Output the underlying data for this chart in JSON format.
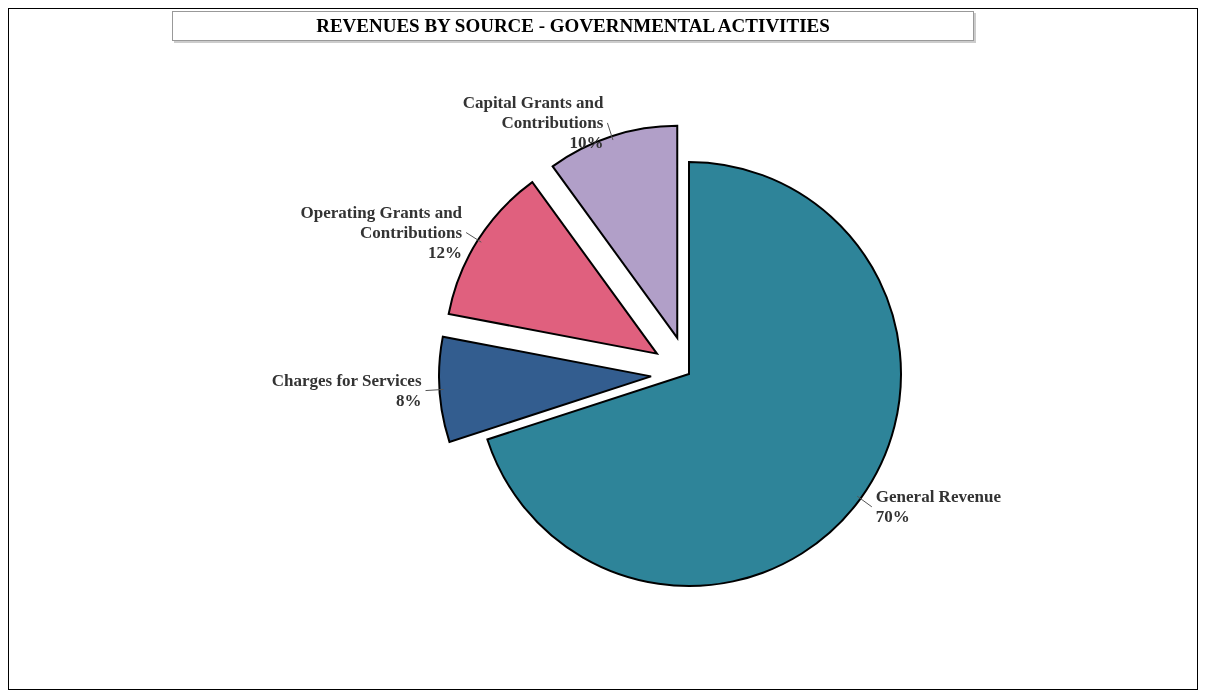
{
  "chart_data": {
    "type": "pie",
    "title": "REVENUES  BY SOURCE - GOVERNMENTAL ACTIVITIES",
    "categories": [
      "General Revenue",
      "Charges for Services",
      "Operating Grants and Contributions",
      "Capital Grants and Contributions"
    ],
    "values": [
      70,
      8,
      12,
      10
    ],
    "colors": [
      "#2e8499",
      "#335d8f",
      "#e0607e",
      "#b19fc8"
    ],
    "value_labels": [
      "70%",
      "8%",
      "12%",
      "10%"
    ],
    "legend": false
  }
}
